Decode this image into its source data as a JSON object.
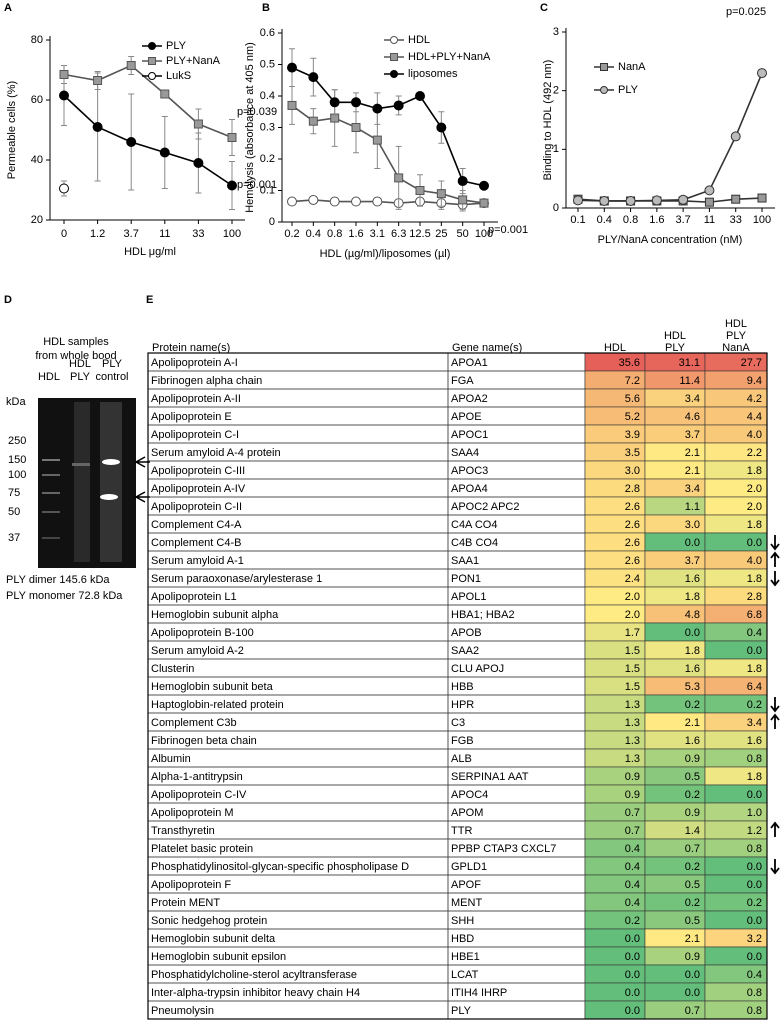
{
  "chart_data": [
    {
      "type": "line",
      "panel": "A",
      "y_label": "Permeable cells (%)",
      "x_label": "HDL μg/ml",
      "categories": [
        "0",
        "1.2",
        "3.7",
        "11",
        "33",
        "100"
      ],
      "ylim": [
        20,
        80
      ],
      "yticks": [
        20,
        40,
        60,
        80
      ],
      "series": [
        {
          "name": "PLY",
          "color": "#000000",
          "marker": "circle",
          "marker_fill": "#000000",
          "values": [
            61.5,
            51,
            46,
            42.5,
            39,
            31.5
          ],
          "errors": [
            10,
            18,
            16,
            12,
            10,
            8
          ]
        },
        {
          "name": "PLY+NanA",
          "color": "#555555",
          "marker": "square",
          "marker_fill": "#999999",
          "values": [
            68.5,
            66.5,
            71.5,
            62,
            52,
            47.5
          ],
          "errors": [
            3,
            3,
            3,
            0,
            5,
            6
          ]
        },
        {
          "name": "LukS",
          "color": "#000000",
          "marker": "circle",
          "marker_fill": "#ffffff",
          "values": [
            30.5,
            null,
            null,
            null,
            null,
            null
          ],
          "errors": [
            2.5,
            null,
            null,
            null,
            null,
            null
          ]
        }
      ],
      "annotations": [
        "p=0.039",
        "p=0.001"
      ]
    },
    {
      "type": "line",
      "panel": "B",
      "y_label": "Hemolysis (absorbance at 405 nm)",
      "x_label": "HDL (µg/ml)/liposomes (µl)",
      "categories": [
        "0.2",
        "0.4",
        "0.8",
        "1.6",
        "3.1",
        "6.3",
        "12.5",
        "25",
        "50",
        "100"
      ],
      "ylim": [
        0,
        0.6
      ],
      "yticks": [
        0,
        0.1,
        0.2,
        0.3,
        0.4,
        0.5,
        0.6
      ],
      "series": [
        {
          "name": "HDL",
          "color": "#555555",
          "marker": "circle",
          "marker_fill": "#ffffff",
          "values": [
            0.065,
            0.07,
            0.065,
            0.065,
            0.065,
            0.06,
            0.065,
            0.06,
            0.055,
            0.06
          ],
          "errors": [
            0.01,
            0.01,
            0.01,
            0.01,
            0.01,
            0.01,
            0.01,
            0.02,
            0.02,
            0.01
          ]
        },
        {
          "name": "HDL+PLY+NanA",
          "color": "#555555",
          "marker": "square",
          "marker_fill": "#999999",
          "values": [
            0.37,
            0.32,
            0.33,
            0.3,
            0.26,
            0.14,
            0.1,
            0.09,
            0.07,
            0.06
          ],
          "errors": [
            0.06,
            0.04,
            0.09,
            0.08,
            0.09,
            0.1,
            0.05,
            0.04,
            0.03,
            0.01
          ]
        },
        {
          "name": "liposomes",
          "color": "#000000",
          "marker": "circle",
          "marker_fill": "#000000",
          "values": [
            0.49,
            0.46,
            0.38,
            0.38,
            0.36,
            0.37,
            0.4,
            0.3,
            0.13,
            0.115
          ],
          "errors": [
            0.06,
            0.06,
            0.04,
            0.03,
            0.05,
            0.03,
            0.01,
            0.05,
            0.04,
            0.01
          ]
        }
      ],
      "annotations": [
        "p=0.001"
      ]
    },
    {
      "type": "line",
      "panel": "C",
      "y_label": "Binding to HDL (492 nm)",
      "x_label": "PLY/NanA concentration (nM)",
      "categories": [
        "0.1",
        "0.4",
        "0.8",
        "1.6",
        "3.7",
        "11",
        "33",
        "100"
      ],
      "ylim": [
        0,
        3
      ],
      "yticks": [
        0,
        1,
        2,
        3
      ],
      "series": [
        {
          "name": "NanA",
          "color": "#333333",
          "marker": "square",
          "marker_fill": "#999999",
          "values": [
            0.15,
            0.12,
            0.12,
            0.12,
            0.12,
            0.1,
            0.15,
            0.17
          ]
        },
        {
          "name": "PLY",
          "color": "#333333",
          "marker": "circle",
          "marker_fill": "#bbbbbb",
          "values": [
            0.13,
            0.12,
            0.12,
            0.13,
            0.14,
            0.3,
            1.22,
            2.3
          ]
        }
      ],
      "annotations": [
        "p=0.025"
      ]
    }
  ],
  "gel": {
    "panel": "D",
    "title": [
      "HDL samples",
      "from whole bood"
    ],
    "lanes": [
      [
        "HDL"
      ],
      [
        "HDL",
        "PLY"
      ],
      [
        "PLY",
        "control"
      ]
    ],
    "unit": "kDa",
    "markers": [
      "250",
      "150",
      "100",
      "75",
      "50",
      "37"
    ],
    "notes": [
      "PLY dimer 145.6 kDa",
      "PLY monomer 72.8 kDa"
    ]
  },
  "table": {
    "panel": "E",
    "header": [
      [
        "Protein name(s)"
      ],
      [
        "Gene name(s)"
      ],
      [
        "HDL"
      ],
      [
        "HDL",
        "PLY"
      ],
      [
        "HDL",
        "PLY",
        "NanA"
      ]
    ],
    "rows": [
      [
        "Apolipoprotein A-I",
        "APOA1",
        "35.6",
        "31.1",
        "27.7"
      ],
      [
        "Fibrinogen alpha chain",
        "FGA",
        "7.2",
        "11.4",
        "9.4"
      ],
      [
        "Apolipoprotein A-II",
        "APOA2",
        "5.6",
        "3.4",
        "4.2"
      ],
      [
        "Apolipoprotein E",
        "APOE",
        "5.2",
        "4.6",
        "4.4"
      ],
      [
        "Apolipoprotein C-I",
        "APOC1",
        "3.9",
        "3.7",
        "4.0"
      ],
      [
        "Serum amyloid A-4 protein",
        "SAA4",
        "3.5",
        "2.1",
        "2.2"
      ],
      [
        "Apolipoprotein C-III",
        "APOC3",
        "3.0",
        "2.1",
        "1.8"
      ],
      [
        "Apolipoprotein A-IV",
        "APOA4",
        "2.8",
        "3.4",
        "2.0"
      ],
      [
        "Apolipoprotein C-II",
        "APOC2 APC2",
        "2.6",
        "1.1",
        "2.0"
      ],
      [
        "Complement C4-A",
        "C4A CO4",
        "2.6",
        "3.0",
        "1.8"
      ],
      [
        "Complement C4-B",
        "C4B CO4",
        "2.6",
        "0.0",
        "0.0"
      ],
      [
        "Serum amyloid A-1",
        "SAA1",
        "2.6",
        "3.7",
        "4.0"
      ],
      [
        "Serum paraoxonase/arylesterase 1",
        "PON1",
        "2.4",
        "1.6",
        "1.8"
      ],
      [
        "Apolipoprotein L1",
        "APOL1",
        "2.0",
        "1.8",
        "2.8"
      ],
      [
        "Hemoglobin subunit alpha",
        "HBA1; HBA2",
        "2.0",
        "4.8",
        "6.8"
      ],
      [
        "Apolipoprotein B-100",
        "APOB",
        "1.7",
        "0.0",
        "0.4"
      ],
      [
        "Serum amyloid A-2",
        "SAA2",
        "1.5",
        "1.8",
        "0.0"
      ],
      [
        "Clusterin",
        "CLU APOJ",
        "1.5",
        "1.6",
        "1.8"
      ],
      [
        "Hemoglobin subunit beta",
        "HBB",
        "1.5",
        "5.3",
        "6.4"
      ],
      [
        "Haptoglobin-related protein",
        "HPR",
        "1.3",
        "0.2",
        "0.2"
      ],
      [
        "Complement C3b",
        "C3",
        "1.3",
        "2.1",
        "3.4"
      ],
      [
        "Fibrinogen beta chain",
        "FGB",
        "1.3",
        "1.6",
        "1.6"
      ],
      [
        "Albumin",
        "ALB",
        "1.3",
        "0.9",
        "0.8"
      ],
      [
        "Alpha-1-antitrypsin",
        "SERPINA1 AAT",
        "0.9",
        "0.5",
        "1.8"
      ],
      [
        "Apolipoprotein C-IV",
        "APOC4",
        "0.9",
        "0.2",
        "0.0"
      ],
      [
        "Apolipoprotein M",
        "APOM",
        "0.7",
        "0.9",
        "1.0"
      ],
      [
        "Transthyretin",
        "TTR",
        "0.7",
        "1.4",
        "1.2"
      ],
      [
        "Platelet basic protein",
        "PPBP CTAP3 CXCL7",
        "0.4",
        "0.7",
        "0.8"
      ],
      [
        "Phosphatidylinositol-glycan-specific phospholipase D",
        "GPLD1",
        "0.4",
        "0.2",
        "0.0"
      ],
      [
        "Apolipoprotein F",
        "APOF",
        "0.4",
        "0.5",
        "0.0"
      ],
      [
        "Protein MENT",
        "MENT",
        "0.4",
        "0.2",
        "0.2"
      ],
      [
        "Sonic hedgehog protein",
        "SHH",
        "0.2",
        "0.5",
        "0.0"
      ],
      [
        "Hemoglobin subunit delta",
        "HBD",
        "0.0",
        "2.1",
        "3.2"
      ],
      [
        "Hemoglobin subunit epsilon",
        "HBE1",
        "0.0",
        "0.9",
        "0.0"
      ],
      [
        "Phosphatidylcholine-sterol acyltransferase",
        "LCAT",
        "0.0",
        "0.0",
        "0.4"
      ],
      [
        "Inter-alpha-trypsin inhibitor heavy chain H4",
        "ITIH4 IHRP",
        "0.0",
        "0.0",
        "0.8"
      ],
      [
        "Pneumolysin",
        "PLY",
        "0.0",
        "0.7",
        "0.8"
      ]
    ]
  }
}
